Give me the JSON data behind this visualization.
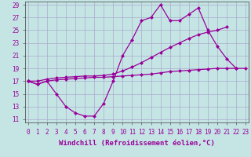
{
  "background_color": "#c5e5e5",
  "grid_color": "#aaaacc",
  "line_color": "#990099",
  "xlabel": "Windchill (Refroidissement éolien,°C)",
  "xlim": [
    -0.3,
    23.3
  ],
  "ylim": [
    10.5,
    29.5
  ],
  "yticks": [
    11,
    13,
    15,
    17,
    19,
    21,
    23,
    25,
    27,
    29
  ],
  "xticks": [
    0,
    1,
    2,
    3,
    4,
    5,
    6,
    7,
    8,
    9,
    10,
    11,
    12,
    13,
    14,
    15,
    16,
    17,
    18,
    19,
    20,
    21,
    22,
    23
  ],
  "line1_x": [
    0,
    1,
    2,
    3,
    4,
    5,
    6,
    7,
    8,
    9,
    10,
    11,
    12,
    13,
    14,
    15,
    16,
    17,
    18,
    19,
    20,
    21,
    22
  ],
  "line1_y": [
    17.0,
    16.5,
    17.0,
    15.0,
    13.0,
    12.0,
    11.5,
    11.5,
    13.5,
    17.0,
    21.0,
    23.5,
    26.5,
    27.0,
    29.0,
    26.5,
    26.5,
    27.5,
    28.5,
    25.0,
    22.5,
    20.5,
    19.0
  ],
  "line2_x": [
    0,
    1,
    2,
    3,
    4,
    5,
    6,
    7,
    8,
    9,
    10,
    11,
    12,
    13,
    14,
    15,
    16,
    17,
    18,
    19,
    20,
    21,
    22,
    23
  ],
  "line2_y": [
    17.0,
    16.5,
    17.0,
    17.2,
    17.3,
    17.4,
    17.5,
    17.6,
    17.6,
    17.7,
    17.8,
    17.9,
    18.0,
    18.1,
    18.3,
    18.5,
    18.6,
    18.7,
    18.8,
    18.9,
    19.0,
    19.0,
    19.0,
    19.0
  ],
  "line3_x": [
    0,
    1,
    2,
    3,
    4,
    5,
    6,
    7,
    8,
    9,
    10,
    11,
    12,
    13,
    14,
    15,
    16,
    17,
    18,
    19,
    20,
    21
  ],
  "line3_y": [
    17.0,
    17.0,
    17.3,
    17.5,
    17.6,
    17.7,
    17.8,
    17.8,
    17.9,
    18.1,
    18.6,
    19.2,
    19.9,
    20.7,
    21.5,
    22.3,
    23.0,
    23.7,
    24.3,
    24.7,
    25.0,
    25.5
  ],
  "marker_size": 2.5,
  "line_width": 0.9,
  "xlabel_fontsize": 6.5,
  "tick_fontsize": 5.5
}
